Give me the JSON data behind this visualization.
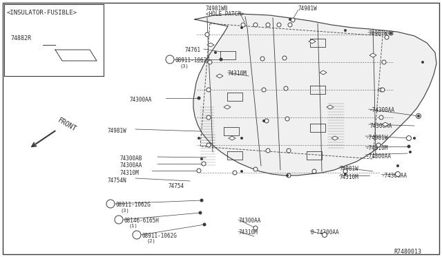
{
  "bg_color": "#ffffff",
  "lc": "#3a3a3a",
  "tc": "#2a2a2a",
  "diagram_number": "R7480013",
  "insulator_label": "<INSULATOR-FUSIBLE>",
  "part_74882R": "74882R",
  "front_arrow_label": "FRONT"
}
